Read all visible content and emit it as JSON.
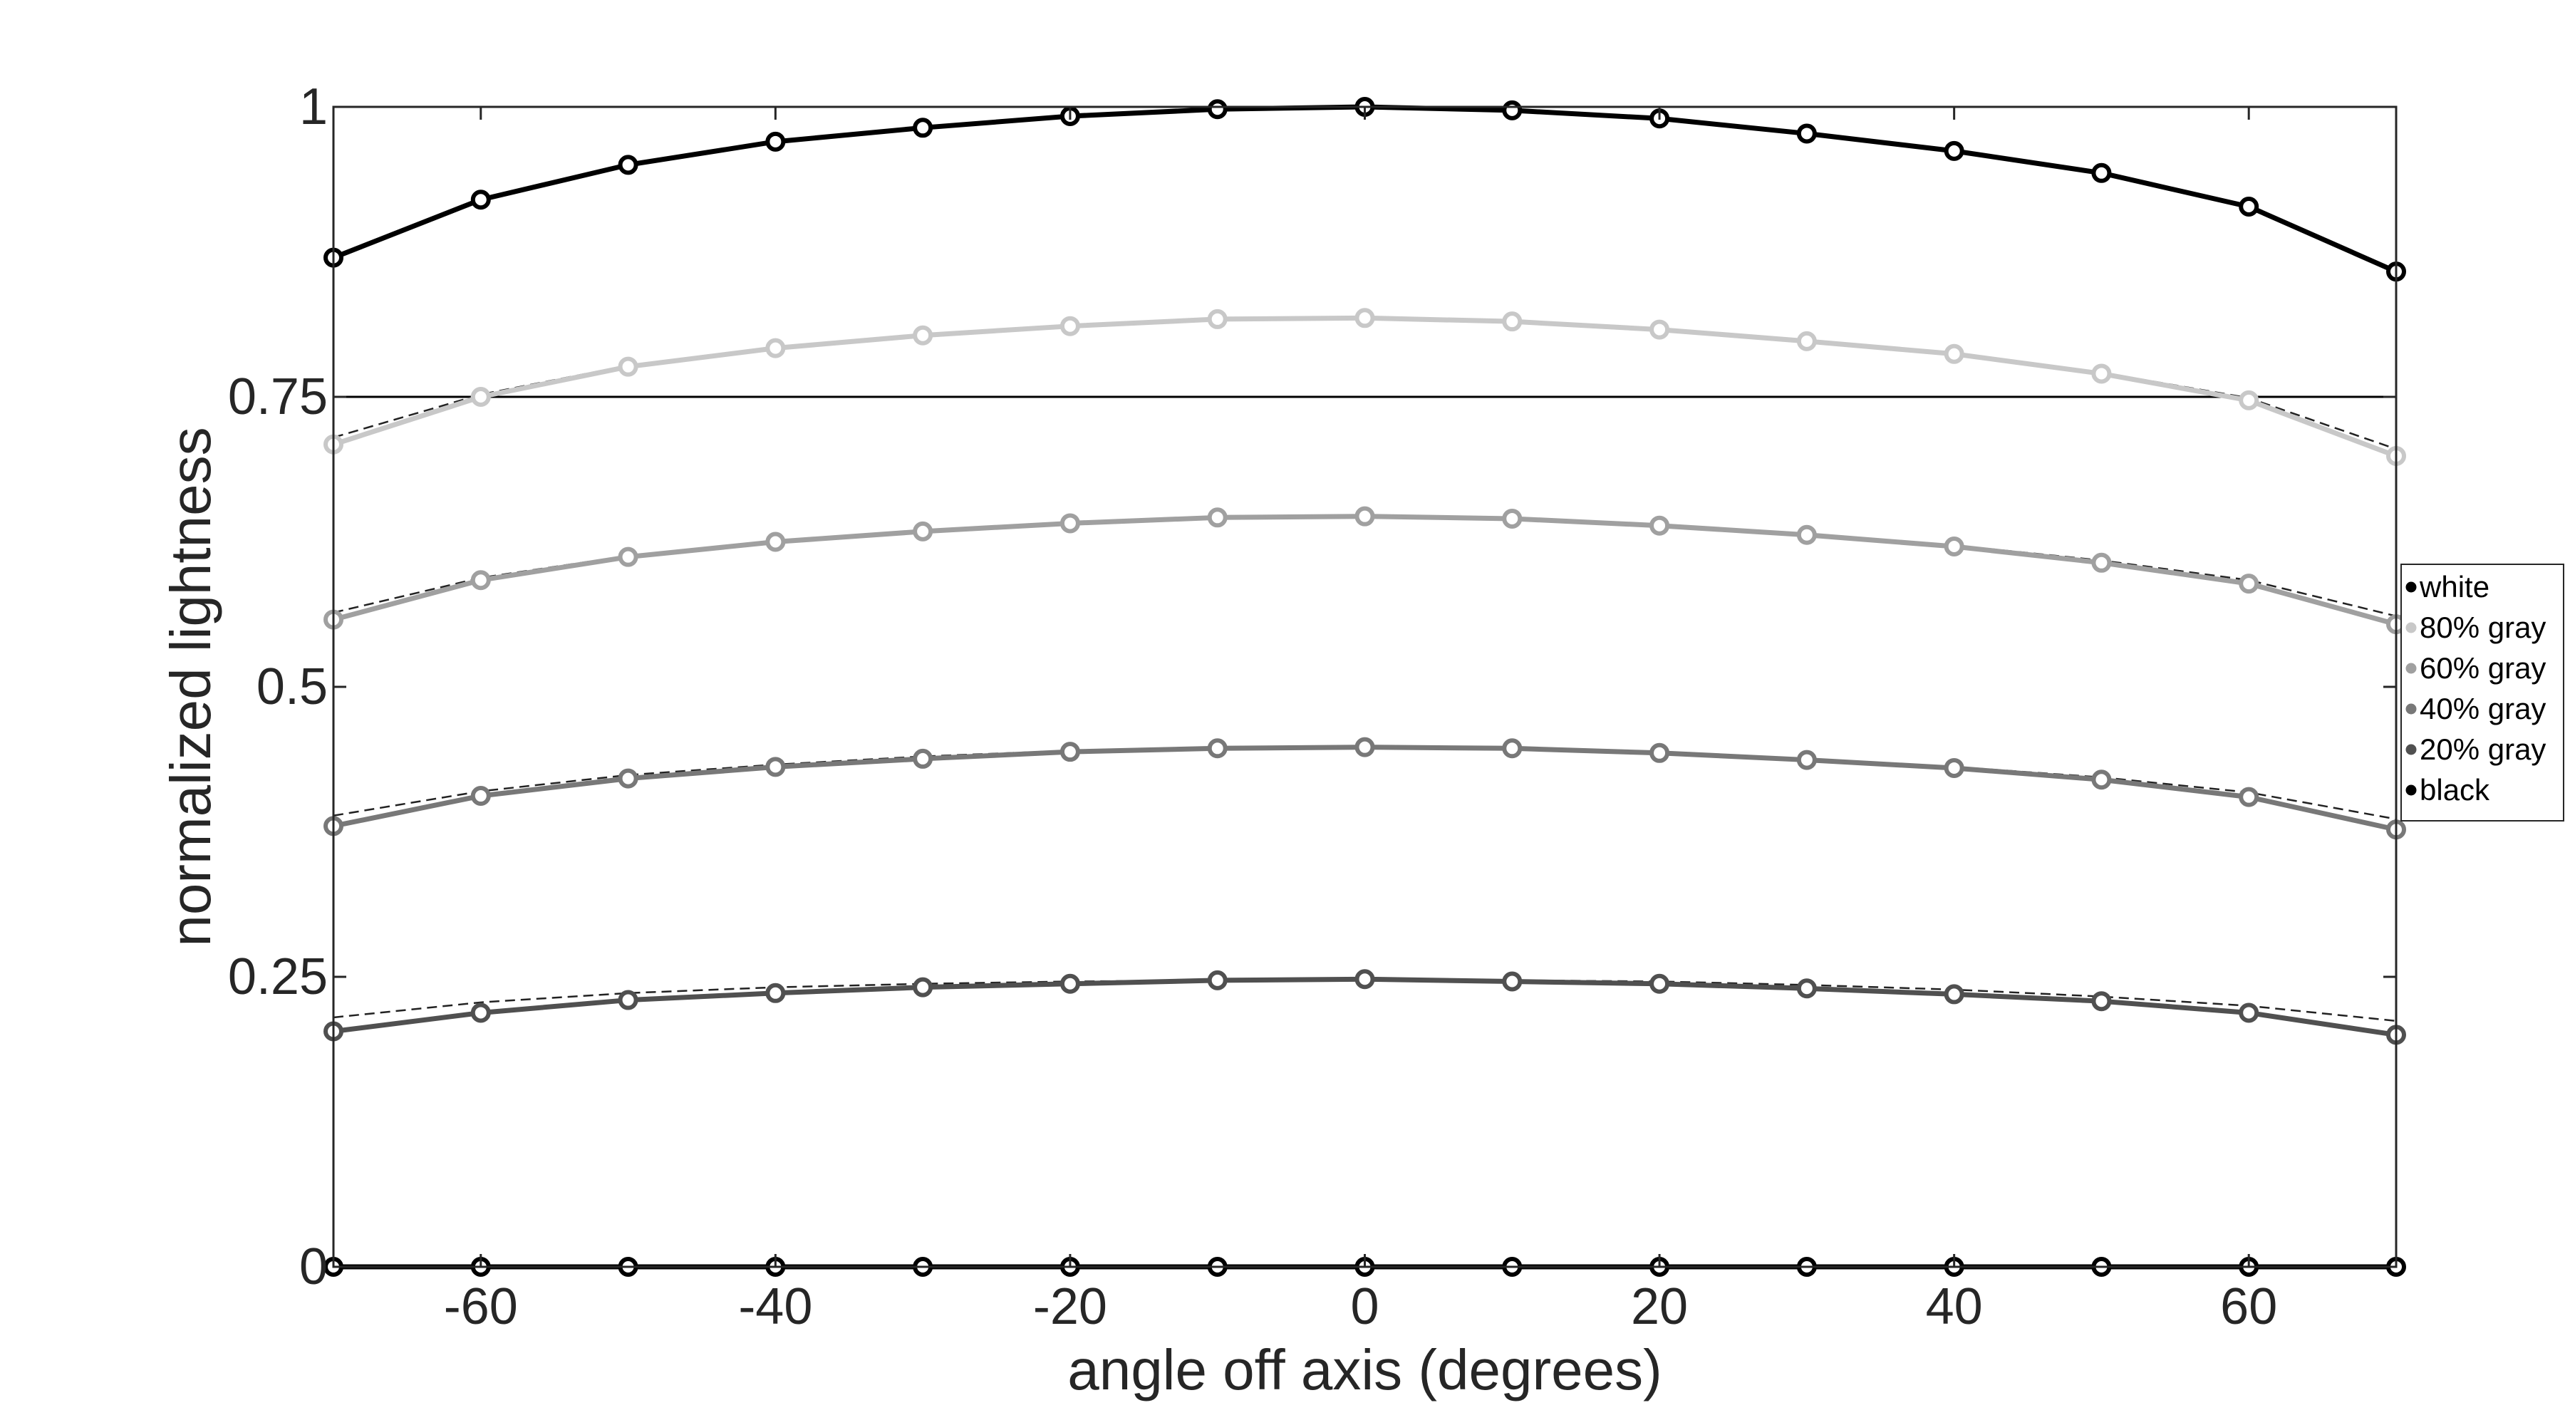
{
  "chart_data": {
    "type": "line",
    "xlabel": "angle off axis (degrees)",
    "ylabel": "normalized lightness",
    "xlim": [
      -70,
      70
    ],
    "ylim": [
      0,
      1
    ],
    "x": [
      -70,
      -60,
      -50,
      -40,
      -30,
      -20,
      -10,
      0,
      10,
      20,
      30,
      40,
      50,
      60,
      70
    ],
    "xticks": [
      -60,
      -40,
      -20,
      0,
      20,
      40,
      60
    ],
    "xtick_labels": [
      "-60",
      "-40",
      "-20",
      "0",
      "20",
      "40",
      "60"
    ],
    "yticks": [
      0,
      0.25,
      0.5,
      0.75,
      1
    ],
    "ytick_labels": [
      "0",
      "0.25",
      "0.5",
      "0.75",
      "1"
    ],
    "reference_line": {
      "y": 0.75,
      "color": "#000000"
    },
    "legend_position": "right",
    "series": [
      {
        "name": "white",
        "color": "#000000",
        "values": [
          0.87,
          0.92,
          0.95,
          0.97,
          0.982,
          0.992,
          0.998,
          1.0,
          0.997,
          0.99,
          0.977,
          0.962,
          0.943,
          0.914,
          0.858
        ]
      },
      {
        "name": "80% gray",
        "color": "#c8c8c8",
        "values": [
          0.709,
          0.75,
          0.776,
          0.792,
          0.803,
          0.811,
          0.817,
          0.818,
          0.815,
          0.808,
          0.798,
          0.787,
          0.77,
          0.747,
          0.699
        ],
        "reference": [
          0.715,
          0.752,
          0.777,
          0.793,
          0.804,
          0.812,
          0.817,
          0.818,
          0.816,
          0.809,
          0.799,
          0.788,
          0.771,
          0.749,
          0.705
        ]
      },
      {
        "name": "60% gray",
        "color": "#a0a0a0",
        "values": [
          0.558,
          0.592,
          0.612,
          0.625,
          0.634,
          0.641,
          0.646,
          0.647,
          0.645,
          0.639,
          0.631,
          0.621,
          0.607,
          0.589,
          0.554
        ],
        "reference": [
          0.564,
          0.594,
          0.613,
          0.626,
          0.635,
          0.642,
          0.646,
          0.647,
          0.645,
          0.64,
          0.632,
          0.622,
          0.609,
          0.592,
          0.561
        ]
      },
      {
        "name": "40% gray",
        "color": "#787878",
        "values": [
          0.38,
          0.406,
          0.421,
          0.431,
          0.438,
          0.444,
          0.447,
          0.448,
          0.447,
          0.443,
          0.437,
          0.43,
          0.42,
          0.405,
          0.377
        ],
        "reference": [
          0.389,
          0.41,
          0.424,
          0.433,
          0.44,
          0.445,
          0.448,
          0.448,
          0.447,
          0.444,
          0.438,
          0.431,
          0.422,
          0.409,
          0.386
        ]
      },
      {
        "name": "20% gray",
        "color": "#505050",
        "values": [
          0.203,
          0.219,
          0.23,
          0.236,
          0.241,
          0.244,
          0.247,
          0.248,
          0.246,
          0.244,
          0.24,
          0.235,
          0.229,
          0.219,
          0.2
        ],
        "reference": [
          0.215,
          0.228,
          0.236,
          0.241,
          0.244,
          0.246,
          0.247,
          0.248,
          0.247,
          0.246,
          0.243,
          0.239,
          0.233,
          0.225,
          0.212
        ]
      },
      {
        "name": "black",
        "color": "#000000",
        "values": [
          0,
          0,
          0,
          0,
          0,
          0,
          0,
          0,
          0,
          0,
          0,
          0,
          0,
          0,
          0
        ]
      }
    ]
  }
}
